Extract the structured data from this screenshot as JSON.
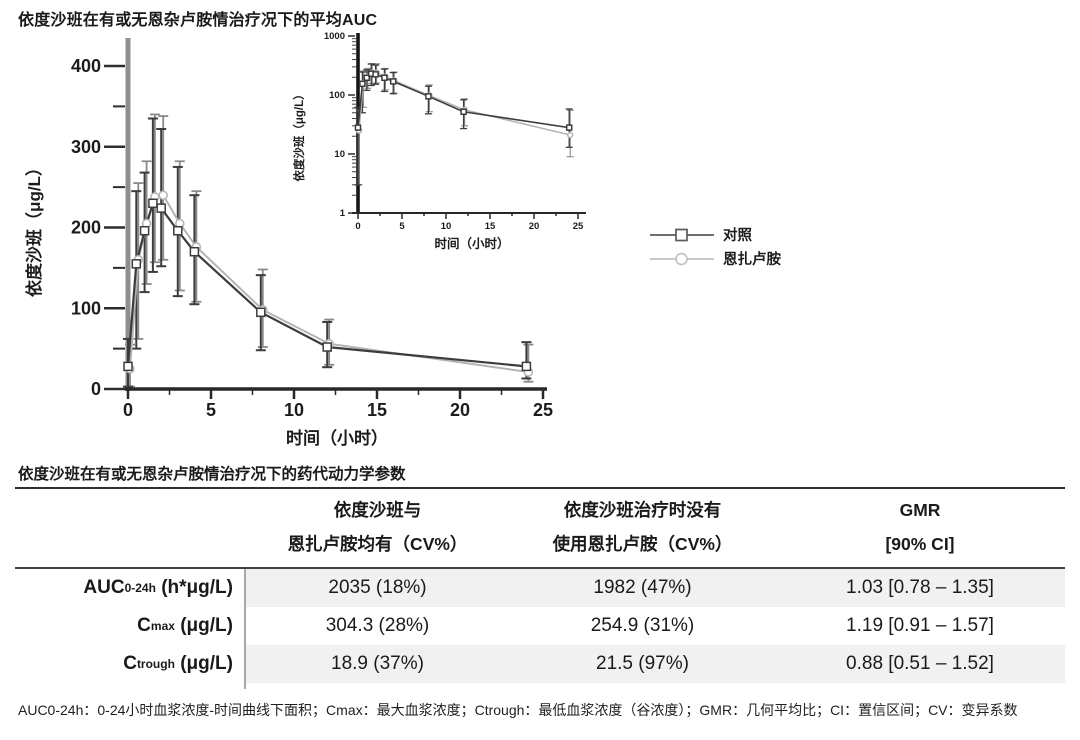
{
  "page": {
    "chart_title": "依度沙班在有或无恩杂卢胺情治疗况下的平均AUC",
    "table_title": "依度沙班在有或无恩杂卢胺情治疗况下的药代动力学参数",
    "footnote": "AUC0-24h：0-24小时血浆浓度-时间曲线下面积；Cmax：最大血浆浓度；Ctrough：最低血浆浓度（谷浓度）；GMR：几何平均比；CI：置信区间；CV：变异系数"
  },
  "colors": {
    "control": "#3c3c3c",
    "enzalutamide": "#b4b4b4",
    "axis_gray": "#8e8e8e",
    "row_shade": "#f1f1f1",
    "text": "#1a1a1a"
  },
  "chart_data": [
    {
      "id": "main",
      "type": "line",
      "title": "",
      "xlabel": "时间（小时）",
      "ylabel": "依度沙班（μg/L）",
      "x_ticks": [
        0,
        5,
        10,
        15,
        20,
        25
      ],
      "x_minor_ticks": [
        2.5,
        7.5,
        12.5,
        17.5,
        22.5
      ],
      "y_ticks": [
        0,
        100,
        200,
        300,
        400
      ],
      "y_minor_ticks": [
        50,
        150,
        250,
        350
      ],
      "xlim": [
        0,
        25
      ],
      "ylim": [
        0,
        400
      ],
      "y_scale": "linear",
      "grid": false,
      "x": [
        0,
        0.5,
        1,
        1.5,
        2,
        3,
        4,
        8,
        12,
        24
      ],
      "series": [
        {
          "name": "对照",
          "marker": "square",
          "color": "#3c3c3c",
          "values": [
            28,
            155,
            196,
            230,
            224,
            196,
            170,
            95,
            52,
            28
          ],
          "err_lo": [
            3,
            50,
            120,
            145,
            152,
            115,
            105,
            48,
            27,
            13
          ],
          "err_hi": [
            62,
            245,
            268,
            335,
            322,
            275,
            240,
            141,
            83,
            58
          ]
        },
        {
          "name": "恩扎卢胺",
          "marker": "circle",
          "color": "#b4b4b4",
          "values": [
            25,
            160,
            205,
            238,
            240,
            205,
            176,
            98,
            56,
            21
          ],
          "err_lo": [
            3,
            62,
            130,
            157,
            160,
            122,
            108,
            52,
            30,
            9
          ],
          "err_hi": [
            55,
            255,
            282,
            340,
            338,
            282,
            245,
            148,
            86,
            55
          ]
        }
      ]
    },
    {
      "id": "inset",
      "type": "line",
      "title": "",
      "xlabel": "时间（小时）",
      "ylabel": "依度沙班（μg/L）",
      "x_ticks": [
        0,
        5,
        10,
        15,
        20,
        25
      ],
      "x_minor_ticks": [
        2.5,
        7.5,
        12.5,
        17.5,
        22.5
      ],
      "y_ticks": [
        1,
        10,
        100,
        1000
      ],
      "xlim": [
        0,
        25
      ],
      "ylim": [
        1,
        1000
      ],
      "y_scale": "log",
      "grid": false,
      "x": [
        0,
        0.5,
        1,
        1.5,
        2,
        3,
        4,
        8,
        12,
        24
      ],
      "series": [
        {
          "name": "对照",
          "marker": "square",
          "color": "#3c3c3c",
          "values": [
            28,
            155,
            196,
            230,
            224,
            196,
            170,
            95,
            52,
            28
          ],
          "err_lo": [
            3,
            50,
            120,
            145,
            152,
            115,
            105,
            48,
            27,
            13
          ],
          "err_hi": [
            62,
            245,
            268,
            335,
            322,
            275,
            240,
            141,
            83,
            58
          ]
        },
        {
          "name": "恩扎卢胺",
          "marker": "circle",
          "color": "#b4b4b4",
          "values": [
            25,
            160,
            205,
            238,
            240,
            205,
            176,
            98,
            56,
            21
          ],
          "err_lo": [
            3,
            62,
            130,
            157,
            160,
            122,
            108,
            52,
            30,
            9
          ],
          "err_hi": [
            55,
            255,
            282,
            340,
            338,
            282,
            245,
            148,
            86,
            55
          ]
        }
      ]
    }
  ],
  "legend": {
    "position": "right-of-inset",
    "items": [
      {
        "label": "对照",
        "marker": "square",
        "color": "#5a5a5a"
      },
      {
        "label": "恩扎卢胺",
        "marker": "circle",
        "color": "#c3c3c3"
      }
    ]
  },
  "table": {
    "headers": [
      {
        "line1": "",
        "line2": ""
      },
      {
        "line1": "依度沙班与",
        "line2": "恩扎卢胺均有（CV%）"
      },
      {
        "line1": "依度沙班治疗时没有",
        "line2": "使用恩扎卢胺（CV%）"
      },
      {
        "line1": "GMR",
        "line2": "[90% CI]"
      }
    ],
    "rows": [
      {
        "param_base": "AUC",
        "param_sub": "0-24h",
        "param_unit": " (h*μg/L)",
        "with_enza": "2035 (18%)",
        "without_enza": "1982 (47%)",
        "gmr": "1.03 [0.78 – 1.35]",
        "shaded": true
      },
      {
        "param_base": "C",
        "param_sub": "max",
        "param_unit": " (μg/L)",
        "with_enza": "304.3 (28%)",
        "without_enza": "254.9 (31%)",
        "gmr": "1.19 [0.91 – 1.57]",
        "shaded": false
      },
      {
        "param_base": "C",
        "param_sub": "trough",
        "param_unit": " (μg/L)",
        "with_enza": "18.9 (37%)",
        "without_enza": "21.5 (97%)",
        "gmr": "0.88 [0.51 – 1.52]",
        "shaded": true
      }
    ]
  }
}
